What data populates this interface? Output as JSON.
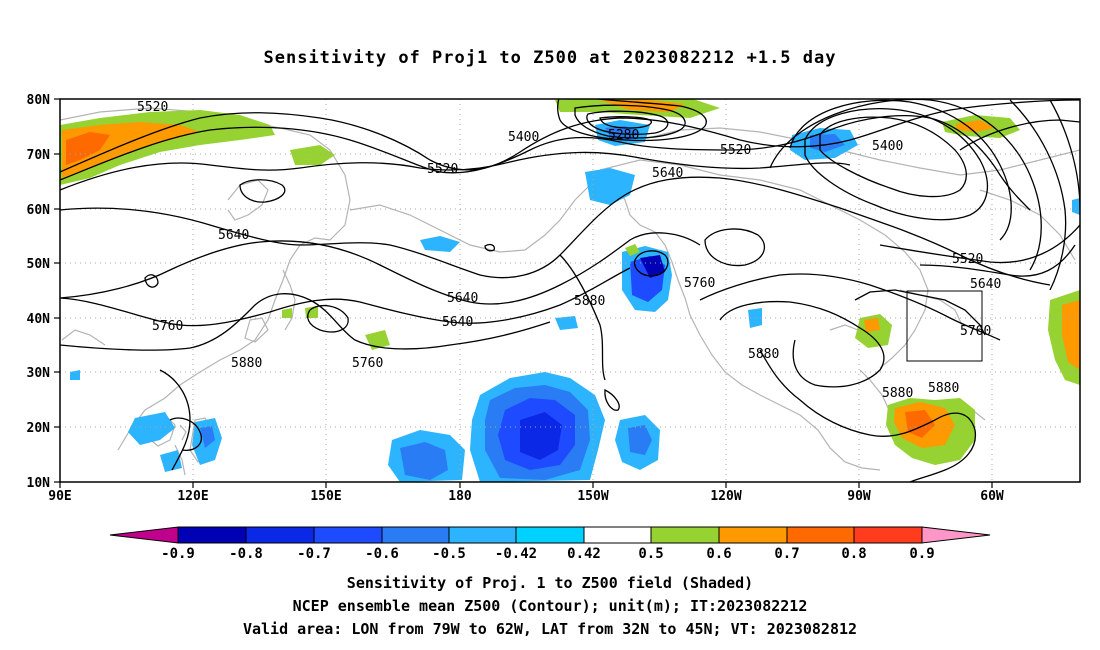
{
  "title": "Sensitivity of Proj1 to Z500 at 2023082212 +1.5 day",
  "latitude_labels": [
    "80N",
    "70N",
    "60N",
    "50N",
    "40N",
    "30N",
    "20N",
    "10N"
  ],
  "longitude_labels": [
    "90E",
    "120E",
    "150E",
    "180",
    "150W",
    "120W",
    "90W",
    "60W"
  ],
  "contour_labels": [
    {
      "text": "5520"
    },
    {
      "text": "5400"
    },
    {
      "text": "5280"
    },
    {
      "text": "5520"
    },
    {
      "text": "5400"
    },
    {
      "text": "5520"
    },
    {
      "text": "5640"
    },
    {
      "text": "5640"
    },
    {
      "text": "5640"
    },
    {
      "text": "5760"
    },
    {
      "text": "5760"
    },
    {
      "text": "5880"
    },
    {
      "text": "5880"
    },
    {
      "text": "5640"
    },
    {
      "text": "5760"
    },
    {
      "text": "5880"
    },
    {
      "text": "5520"
    },
    {
      "text": "5640"
    },
    {
      "text": "5760"
    },
    {
      "text": "5880"
    },
    {
      "text": "5880"
    }
  ],
  "colorbar": {
    "labels": [
      "-0.9",
      "-0.8",
      "-0.7",
      "-0.6",
      "-0.5",
      "-0.42",
      "0.42",
      "0.5",
      "0.6",
      "0.7",
      "0.8",
      "0.9"
    ],
    "colors": [
      "#c0008c",
      "#0000b4",
      "#0a28e6",
      "#1e4bff",
      "#2a7cf5",
      "#2db4ff",
      "#00d2ff",
      "#ffffff",
      "#96d232",
      "#ff9900",
      "#ff6a00",
      "#ff3c1e",
      "#ff0000",
      "#ff96c8"
    ]
  },
  "caption": [
    "Sensitivity of Proj. 1 to Z500 field (Shaded)",
    "NCEP ensemble mean Z500 (Contour); unit(m); IT:2023082212",
    "Valid area: LON from 79W to 62W, LAT from 32N to 45N; VT: 2023082812"
  ]
}
